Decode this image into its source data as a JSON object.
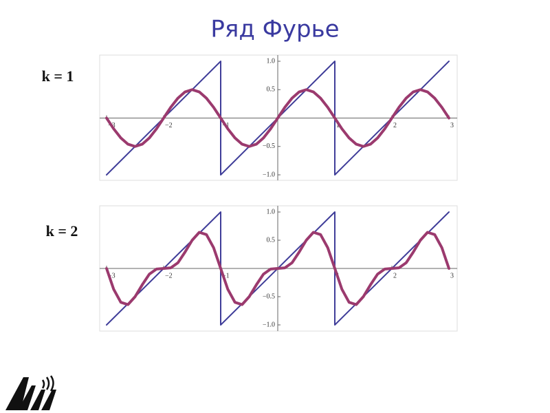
{
  "title": "Ряд Фурье",
  "chart_data": [
    {
      "type": "line",
      "title": "k = 1",
      "xlim": [
        -3,
        3
      ],
      "ylim": [
        -1,
        1
      ],
      "xticks": [
        {
          "value": -3,
          "label": "−3"
        },
        {
          "value": -2,
          "label": "−2"
        },
        {
          "value": -1,
          "label": "−1"
        },
        1,
        2,
        3
      ],
      "yticks": [
        {
          "value": -1,
          "label": "−1.0"
        },
        {
          "value": -0.5,
          "label": "−0.5"
        },
        0.5,
        {
          "value": 1,
          "label": "1.0"
        }
      ],
      "series": [
        {
          "color": "#3f3d99",
          "x": [
            -3,
            -1,
            -1,
            1,
            1,
            3
          ],
          "values": [
            -1,
            1,
            -1,
            1,
            -1,
            1
          ]
        },
        {
          "color": "#9b3a6e",
          "x": [
            -3,
            -2.875,
            -2.75,
            -2.625,
            -2.5,
            -2.375,
            -2.25,
            -2.125,
            -2,
            -1.875,
            -1.75,
            -1.625,
            -1.5,
            -1.375,
            -1.25,
            -1.125,
            -1,
            -0.875,
            -0.75,
            -0.625,
            -0.5,
            -0.375,
            -0.25,
            -0.125,
            0,
            0.125,
            0.25,
            0.375,
            0.5,
            0.625,
            0.75,
            0.875,
            1,
            1.125,
            1.25,
            1.375,
            1.5,
            1.625,
            1.75,
            1.875,
            2,
            2.125,
            2.25,
            2.375,
            2.5,
            2.625,
            2.75,
            2.875,
            3
          ],
          "values": [
            0,
            -0.19,
            -0.35,
            -0.46,
            -0.5,
            -0.46,
            -0.35,
            -0.19,
            0,
            0.19,
            0.35,
            0.46,
            0.5,
            0.46,
            0.35,
            0.19,
            0,
            -0.19,
            -0.35,
            -0.46,
            -0.5,
            -0.46,
            -0.35,
            -0.19,
            0,
            0.19,
            0.35,
            0.46,
            0.5,
            0.46,
            0.35,
            0.19,
            0,
            -0.19,
            -0.35,
            -0.46,
            -0.5,
            -0.46,
            -0.35,
            -0.19,
            0,
            0.19,
            0.35,
            0.46,
            0.5,
            0.46,
            0.35,
            0.19,
            0
          ]
        }
      ]
    },
    {
      "type": "line",
      "title": "k = 2",
      "xlim": [
        -3,
        3
      ],
      "ylim": [
        -1,
        1
      ],
      "xticks": [
        {
          "value": -3,
          "label": "−3"
        },
        {
          "value": -2,
          "label": "−2"
        },
        {
          "value": -1,
          "label": "−1"
        },
        1,
        2,
        3
      ],
      "yticks": [
        {
          "value": -1,
          "label": "−1.0"
        },
        {
          "value": -0.5,
          "label": "−0.5"
        },
        0.5,
        {
          "value": 1,
          "label": "1.0"
        }
      ],
      "series": [
        {
          "color": "#3f3d99",
          "x": [
            -3,
            -1,
            -1,
            1,
            1,
            3
          ],
          "values": [
            -1,
            1,
            -1,
            1,
            -1,
            1
          ]
        },
        {
          "color": "#9b3a6e",
          "x": [
            -3,
            -2.875,
            -2.75,
            -2.625,
            -2.5,
            -2.375,
            -2.25,
            -2.125,
            -2,
            -1.875,
            -1.75,
            -1.625,
            -1.5,
            -1.375,
            -1.25,
            -1.125,
            -1,
            -0.875,
            -0.75,
            -0.625,
            -0.5,
            -0.375,
            -0.25,
            -0.125,
            0,
            0.125,
            0.25,
            0.375,
            0.5,
            0.625,
            0.75,
            0.875,
            1,
            1.125,
            1.25,
            1.375,
            1.5,
            1.625,
            1.75,
            1.875,
            2,
            2.125,
            2.25,
            2.375,
            2.5,
            2.625,
            2.75,
            2.875,
            3
          ],
          "values": [
            0,
            -0.37,
            -0.6,
            -0.64,
            -0.5,
            -0.29,
            -0.1,
            -0.01,
            0,
            0.01,
            0.1,
            0.29,
            0.5,
            0.64,
            0.6,
            0.37,
            0,
            -0.37,
            -0.6,
            -0.64,
            -0.5,
            -0.29,
            -0.1,
            -0.01,
            0,
            0.01,
            0.1,
            0.29,
            0.5,
            0.64,
            0.6,
            0.37,
            0,
            -0.37,
            -0.6,
            -0.64,
            -0.5,
            -0.29,
            -0.1,
            -0.01,
            0,
            0.01,
            0.1,
            0.29,
            0.5,
            0.64,
            0.6,
            0.37,
            0
          ]
        }
      ]
    }
  ]
}
